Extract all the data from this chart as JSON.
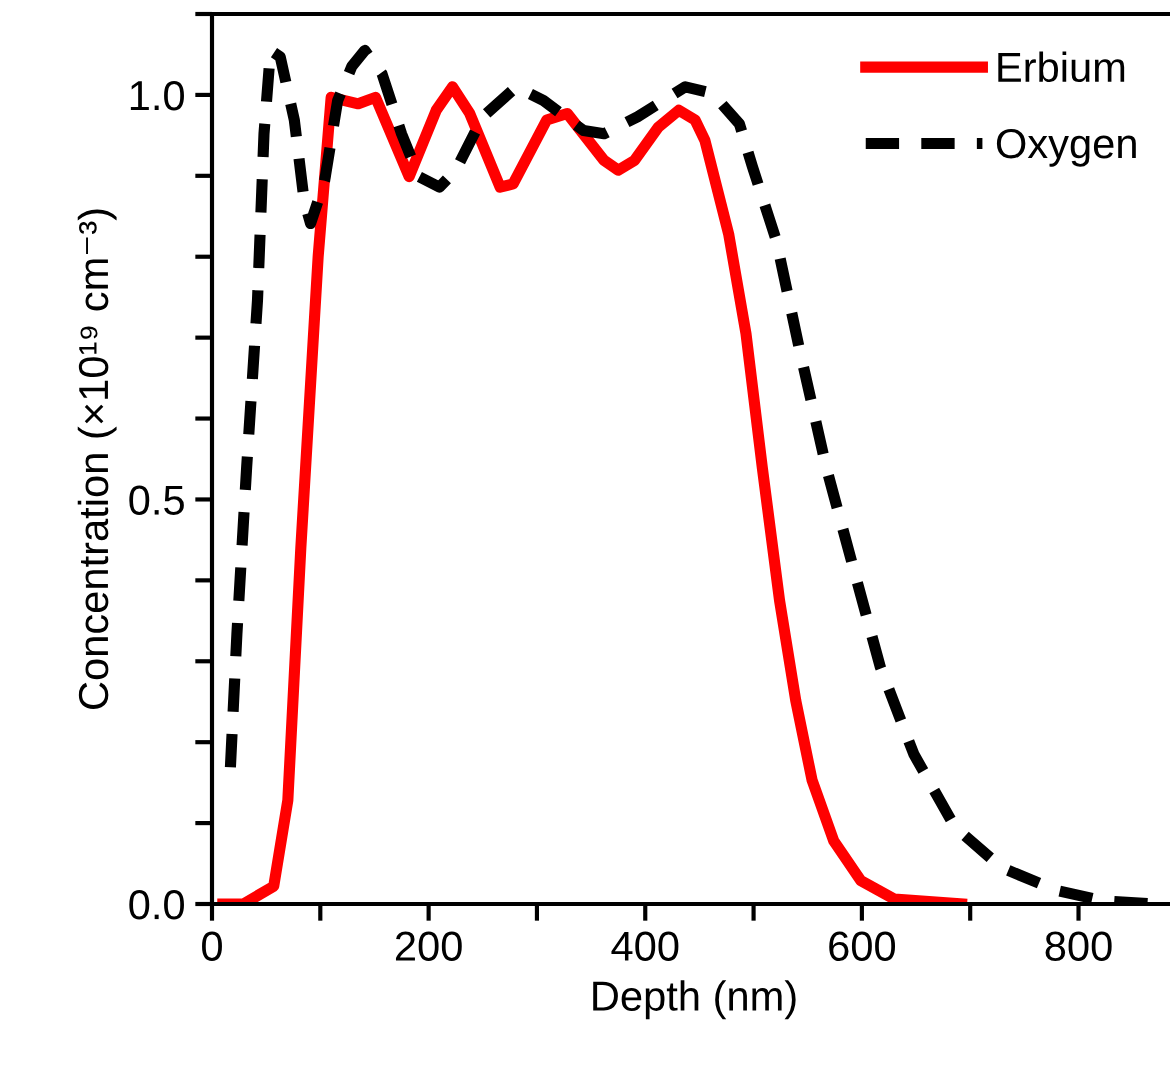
{
  "chart_data": {
    "type": "line",
    "xlabel": "Depth (nm)",
    "ylabel": "Concentration (×10¹⁹ cm⁻³)",
    "xlim": [
      0,
      890
    ],
    "ylim": [
      0,
      1.1
    ],
    "xticks": [
      0,
      200,
      400,
      600,
      800
    ],
    "yticks": [
      {
        "value": 0,
        "label": "0.0"
      },
      0.5,
      {
        "value": 1,
        "label": "1.0"
      }
    ],
    "grid": false,
    "legend": "top right",
    "marker": "none",
    "series": [
      {
        "name": "Erbium",
        "color": "#ff0000",
        "line_style": "solid",
        "x": [
          10,
          29,
          57,
          70,
          82,
          98,
          110,
          135,
          151,
          182,
          207,
          222,
          238,
          266,
          278,
          309,
          328,
          362,
          375,
          390,
          412,
          431,
          446,
          455,
          477,
          493,
          508,
          524,
          539,
          554,
          574,
          599,
          630,
          692
        ],
        "values": [
          0,
          0,
          0.022,
          0.128,
          0.44,
          0.8,
          0.997,
          0.989,
          0.997,
          0.899,
          0.981,
          1.01,
          0.977,
          0.886,
          0.89,
          0.969,
          0.977,
          0.919,
          0.907,
          0.919,
          0.96,
          0.981,
          0.969,
          0.944,
          0.828,
          0.705,
          0.54,
          0.375,
          0.251,
          0.153,
          0.078,
          0.029,
          0.006,
          0
        ]
      },
      {
        "name": "Oxygen",
        "color": "#000000",
        "line_style": "dashed",
        "x": [
          17,
          23,
          32,
          42,
          48,
          54,
          63,
          76,
          85,
          91,
          104,
          116,
          129,
          141,
          157,
          175,
          191,
          210,
          225,
          250,
          281,
          306,
          343,
          362,
          393,
          437,
          462,
          487,
          499,
          521,
          542,
          567,
          592,
          617,
          648,
          686,
          729,
          779,
          823,
          869
        ],
        "values": [
          0.169,
          0.334,
          0.54,
          0.746,
          0.952,
          1.055,
          1.047,
          0.969,
          0.87,
          0.841,
          0.894,
          0.993,
          1.035,
          1.055,
          1.026,
          0.952,
          0.899,
          0.886,
          0.907,
          0.973,
          1.01,
          0.993,
          0.956,
          0.952,
          0.973,
          1.01,
          1.002,
          0.964,
          0.911,
          0.82,
          0.688,
          0.54,
          0.416,
          0.293,
          0.185,
          0.095,
          0.045,
          0.017,
          0.004,
          0
        ]
      }
    ]
  }
}
